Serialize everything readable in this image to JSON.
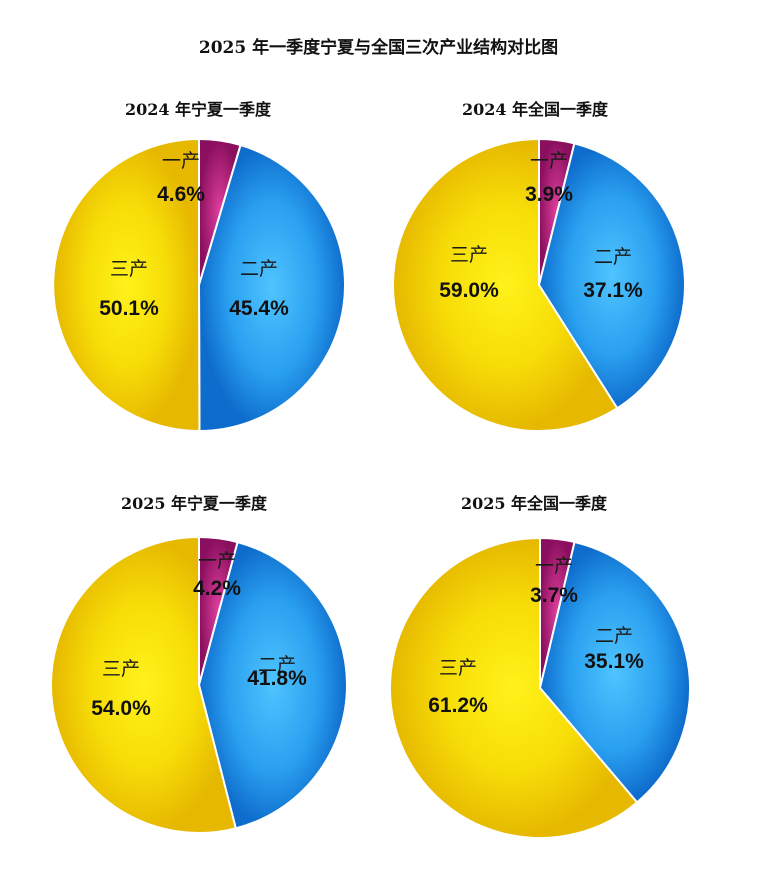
{
  "title": "2025 年一季度宁夏与全国三次产业结构对比图",
  "colors": {
    "primary": "#b0177a",
    "secondary": "#1c8ae6",
    "tertiary": "#f2c800"
  },
  "chart_data": [
    {
      "type": "pie",
      "title": "2024 年宁夏一季度",
      "slices": [
        {
          "label": "一产",
          "value": 4.6,
          "display": "4.6%"
        },
        {
          "label": "二产",
          "value": 45.4,
          "display": "45.4%"
        },
        {
          "label": "三产",
          "value": 50.1,
          "display": "50.1%"
        }
      ]
    },
    {
      "type": "pie",
      "title": "2024 年全国一季度",
      "slices": [
        {
          "label": "一产",
          "value": 3.9,
          "display": "3.9%"
        },
        {
          "label": "二产",
          "value": 37.1,
          "display": "37.1%"
        },
        {
          "label": "三产",
          "value": 59.0,
          "display": "59.0%"
        }
      ]
    },
    {
      "type": "pie",
      "title": "2025 年宁夏一季度",
      "slices": [
        {
          "label": "一产",
          "value": 4.2,
          "display": "4.2%"
        },
        {
          "label": "二产",
          "value": 41.8,
          "display": "41.8%"
        },
        {
          "label": "三产",
          "value": 54.0,
          "display": "54.0%"
        }
      ]
    },
    {
      "type": "pie",
      "title": "2025 年全国一季度",
      "slices": [
        {
          "label": "一产",
          "value": 3.7,
          "display": "3.7%"
        },
        {
          "label": "二产",
          "value": 35.1,
          "display": "35.1%"
        },
        {
          "label": "三产",
          "value": 61.2,
          "display": "61.2%"
        }
      ]
    }
  ]
}
